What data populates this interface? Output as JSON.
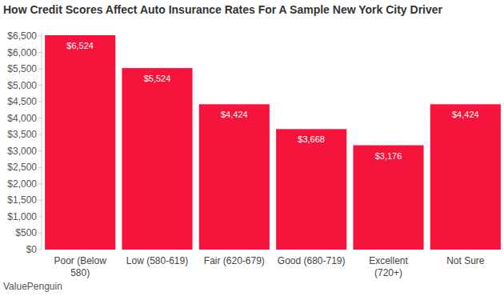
{
  "chart_data": {
    "type": "bar",
    "title": "How Credit Scores Affect Auto Insurance Rates For A Sample New York City Driver",
    "categories": [
      "Poor (Below 580)",
      "Low (580-619)",
      "Fair (620-679)",
      "Good (680-719)",
      "Excellent (720+)",
      "Not Sure"
    ],
    "values": [
      6524,
      5524,
      4424,
      3668,
      3176,
      4424
    ],
    "value_labels": [
      "$6,524",
      "$5,524",
      "$4,424",
      "$3,668",
      "$3,176",
      "$4,424"
    ],
    "color": "#f7143c",
    "ylim": [
      0,
      6600
    ],
    "yticks": [
      {
        "value": 0,
        "label": "$0"
      },
      {
        "value": 500,
        "label": "$500"
      },
      {
        "value": 1000,
        "label": "$1,000"
      },
      {
        "value": 1500,
        "label": "$1,500"
      },
      {
        "value": 2000,
        "label": "$2,000"
      },
      {
        "value": 2500,
        "label": "$2,500"
      },
      {
        "value": 3000,
        "label": "$3,000"
      },
      {
        "value": 3500,
        "label": "$3,500"
      },
      {
        "value": 4000,
        "label": "$4,000"
      },
      {
        "value": 4500,
        "label": "$4,500"
      },
      {
        "value": 5000,
        "label": "$5,000"
      },
      {
        "value": 5500,
        "label": "$5,500"
      },
      {
        "value": 6000,
        "label": "$6,000"
      },
      {
        "value": 6500,
        "label": "$6,500"
      }
    ],
    "grid": false,
    "data_labels": true,
    "annotations": [
      "ValuePenguin"
    ]
  }
}
